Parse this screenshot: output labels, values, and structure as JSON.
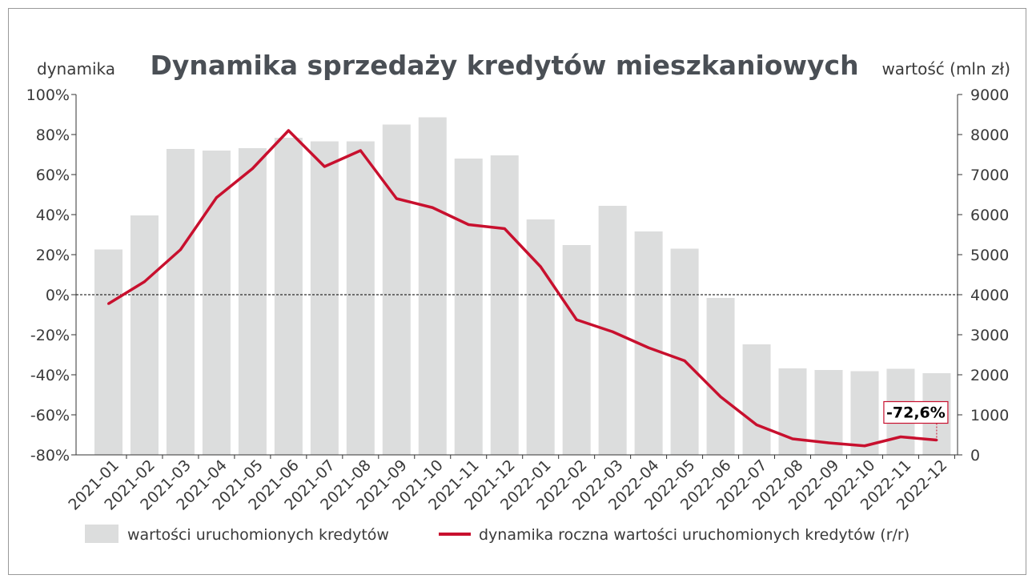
{
  "chart_data": {
    "type": "bar",
    "title": "Dynamika sprzedaży kredytów mieszkaniowych",
    "ylabel_left": "dynamika",
    "ylabel_right": "wartość (mln zł)",
    "categories": [
      "2021-01",
      "2021-02",
      "2021-03",
      "2021-04",
      "2021-05",
      "2021-06",
      "2021-07",
      "2021-08",
      "2021-09",
      "2021-10",
      "2021-11",
      "2021-12",
      "2022-01",
      "2022-02",
      "2022-03",
      "2022-04",
      "2022-05",
      "2022-06",
      "2022-07",
      "2022-08",
      "2022-09",
      "2022-10",
      "2022-11",
      "2022-12"
    ],
    "left_axis": {
      "ylim": [
        -80,
        100
      ],
      "ticks": [
        "100%",
        "80%",
        "60%",
        "40%",
        "20%",
        "0%",
        "-20%",
        "-40%",
        "-60%",
        "-80%"
      ],
      "tick_values": [
        100,
        80,
        60,
        40,
        20,
        0,
        -20,
        -40,
        -60,
        -80
      ]
    },
    "right_axis": {
      "ylim": [
        0,
        9000
      ],
      "ticks": [
        "9000",
        "8000",
        "7000",
        "6000",
        "5000",
        "4000",
        "3000",
        "2000",
        "1000",
        "0"
      ],
      "tick_values": [
        9000,
        8000,
        7000,
        6000,
        5000,
        4000,
        3000,
        2000,
        1000,
        0
      ]
    },
    "series": [
      {
        "name": "wartości uruchomionych kredytów",
        "type": "bar",
        "axis": "right",
        "color": "#dcdddd",
        "values": [
          5130,
          5980,
          7640,
          7600,
          7660,
          7920,
          7830,
          7830,
          8250,
          8430,
          7400,
          7480,
          5880,
          5240,
          6220,
          5580,
          5150,
          3920,
          2760,
          2160,
          2120,
          2090,
          2150,
          2040
        ]
      },
      {
        "name": "dynamika roczna wartości uruchomionych kredytów (r/r)",
        "type": "line",
        "axis": "left",
        "color": "#c8102e",
        "values": [
          -4.5,
          6.5,
          22.5,
          48.5,
          63,
          82,
          64,
          72,
          48,
          43.5,
          35,
          33,
          14,
          -12.5,
          -18.5,
          -26.5,
          -33,
          -51,
          -65,
          -72,
          -74,
          -75.5,
          -71,
          -72.6
        ]
      }
    ],
    "annotation": {
      "label": "-72,6%",
      "category": "2022-12"
    },
    "zero_line": {
      "value": 0,
      "style": "dashed"
    },
    "legend": {
      "position": "bottom",
      "items": [
        "wartości uruchomionych kredytów",
        "dynamika roczna wartości uruchomionych kredytów (r/r)"
      ]
    },
    "grid": false
  }
}
